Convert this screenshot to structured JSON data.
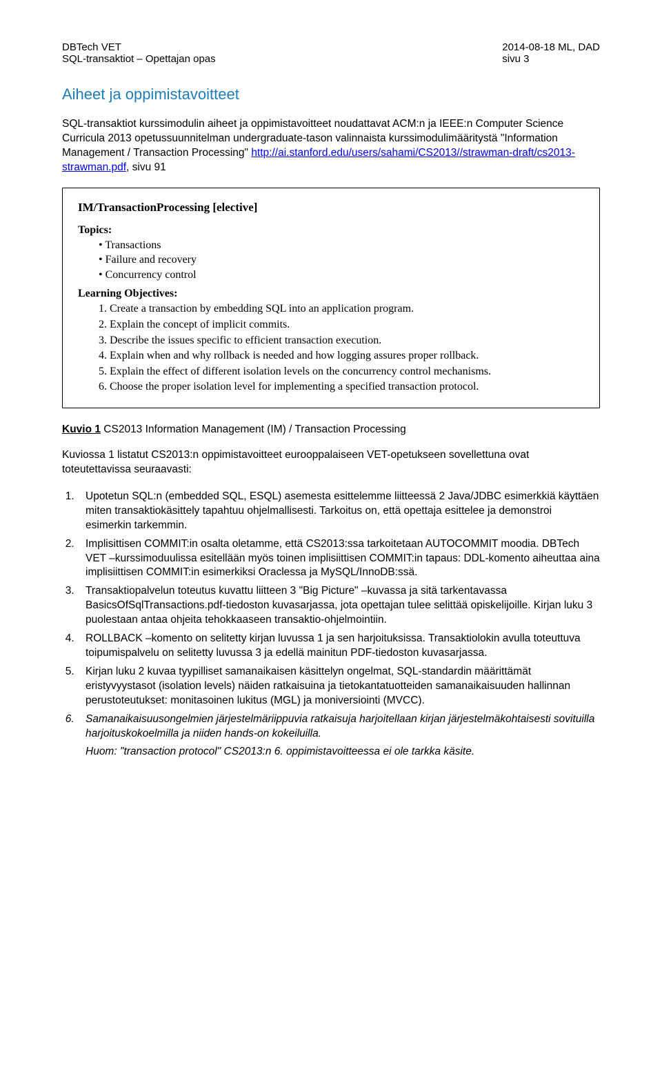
{
  "header": {
    "left_line1": "DBTech VET",
    "left_line2": "SQL-transaktiot – Opettajan opas",
    "right_line1": "2014-08-18 ML, DAD",
    "right_line2": "sivu 3"
  },
  "section_title": "Aiheet ja oppimistavoitteet",
  "intro_para_part1": "SQL-transaktiot kurssimodulin aiheet ja oppimistavoitteet noudattavat ACM:n ja IEEE:n Computer Science Curricula 2013 opetussuunnitelman undergraduate-tason valinnaista kurssimodulimääritystä \"Information Management / Transaction Processing\" ",
  "intro_link": "http://ai.stanford.edu/users/sahami/CS2013//strawman-draft/cs2013-strawman.pdf",
  "intro_para_part2": ", sivu 91",
  "box": {
    "title": "IM/TransactionProcessing [elective]",
    "topics_label": "Topics:",
    "topics": [
      "Transactions",
      "Failure and recovery",
      "Concurrency control"
    ],
    "objectives_label": "Learning Objectives:",
    "objectives": [
      "1. Create a transaction by embedding SQL into an application program.",
      "2. Explain the concept of implicit commits.",
      "3. Describe the issues specific to efficient transaction execution.",
      "4. Explain when and why rollback is needed and how logging assures proper rollback.",
      "5. Explain the effect of different isolation levels on the concurrency control mechanisms.",
      "6. Choose the proper isolation level for implementing a specified transaction protocol."
    ]
  },
  "fig_caption_label": "Kuvio 1",
  "fig_caption_text": "  CS2013  Information Management (IM) / Transaction Processing",
  "para2": "Kuviossa 1 listatut CS2013:n oppimistavoitteet eurooppalaiseen VET-opetukseen sovellettuna ovat toteutettavissa seuraavasti:",
  "list": [
    "Upotetun SQL:n (embedded SQL, ESQL) asemesta esittelemme liitteessä 2 Java/JDBC esimerkkiä käyttäen miten transaktiokäsittely tapahtuu ohjelmallisesti.  Tarkoitus on, että opettaja esittelee ja demonstroi esimerkin tarkemmin.",
    "Implisittisen COMMIT:in osalta oletamme, että CS2013:ssa tarkoitetaan AUTOCOMMIT moodia.  DBTech VET –kurssimoduulissa esitellään myös toinen implisiittisen COMMIT:in tapaus:  DDL-komento aiheuttaa aina implisiittisen COMMIT:in esimerkiksi Oraclessa ja MySQL/InnoDB:ssä.",
    "Transaktiopalvelun toteutus kuvattu liitteen 3 \"Big Picture\" –kuvassa ja sitä tarkentavassa BasicsOfSqlTransactions.pdf-tiedoston kuvasarjassa, jota opettajan tulee selittää opiskelijoille. Kirjan luku 3 puolestaan antaa ohjeita tehokkaaseen transaktio-ohjelmointiin.",
    "ROLLBACK –komento on selitetty kirjan luvussa 1 ja sen harjoituksissa.  Transaktiolokin avulla toteuttuva toipumispalvelu on selitetty luvussa 3 ja edellä mainitun PDF-tiedoston kuvasarjassa.",
    "Kirjan luku 2 kuvaa tyypilliset samanaikaisen käsittelyn ongelmat, SQL-standardin määrittämät eristyvyystasot (isolation levels) näiden ratkaisuina ja tietokantatuotteiden samanaikaisuuden hallinnan perustoteutukset: monitasoinen lukitus (MGL) ja moniversiointi (MVCC).",
    "Samanaikaisuusongelmien järjestelmäriippuvia ratkaisuja harjoitellaan kirjan järjestelmäkohtaisesti sovituilla harjoituskokoelmilla ja niiden hands-on kokeiluilla."
  ],
  "huom_label": "Huom:",
  "huom_text": "        \"transaction protocol\" CS2013:n 6. oppimistavoitteessa ei ole tarkka käsite."
}
